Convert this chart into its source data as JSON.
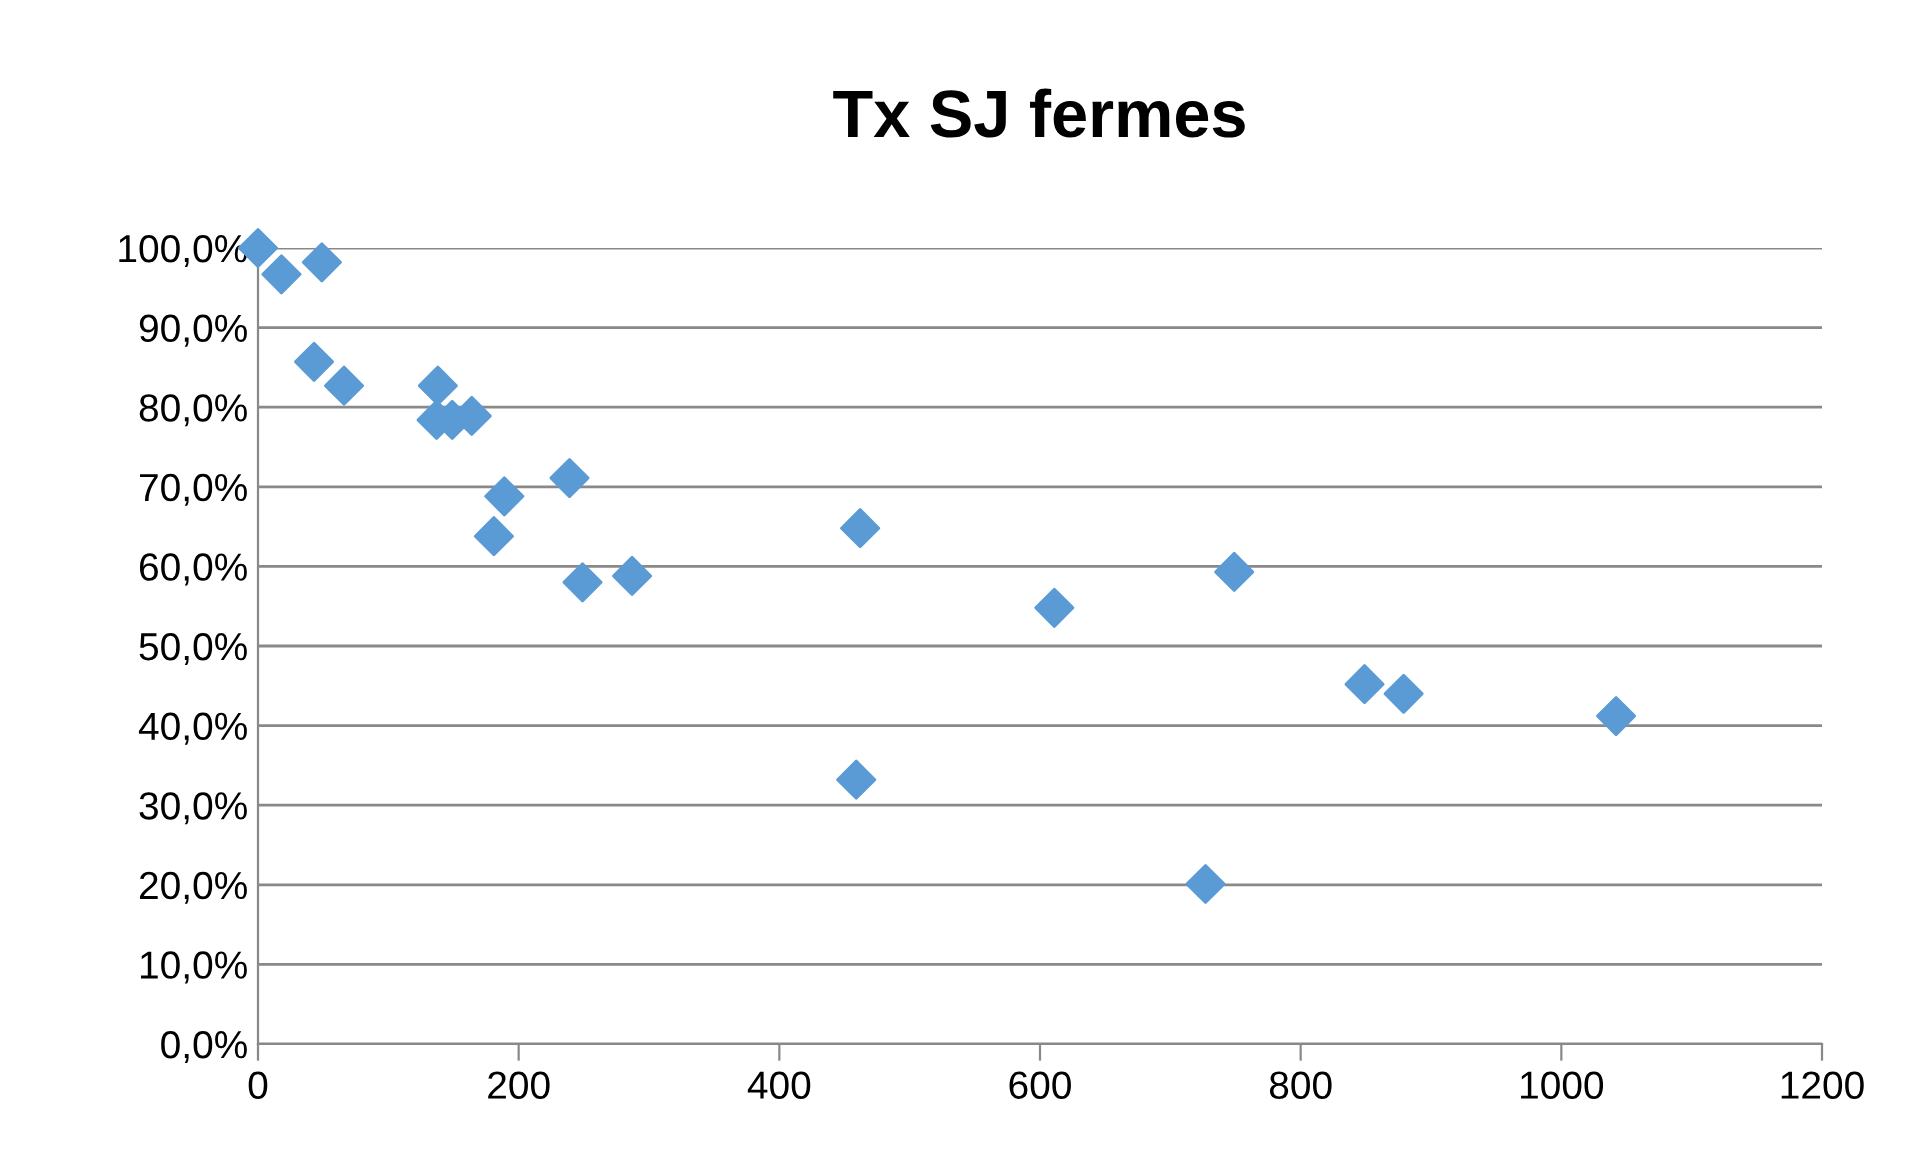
{
  "chart_data": {
    "type": "scatter",
    "title": "Tx SJ fermes",
    "series": [
      {
        "color": "#5b9bd5",
        "x": [
          0,
          18,
          49,
          43,
          66,
          138,
          137,
          149,
          164,
          181,
          189,
          239,
          249,
          287,
          462,
          459,
          611,
          749,
          727,
          849,
          879,
          1042
        ],
        "values": [
          1.0,
          0.967,
          0.982,
          0.857,
          0.827,
          0.827,
          0.784,
          0.784,
          0.789,
          0.638,
          0.688,
          0.711,
          0.58,
          0.588,
          0.648,
          0.332,
          0.548,
          0.593,
          0.201,
          0.452,
          0.44,
          0.412
        ]
      }
    ],
    "marker": "diamond",
    "grid": "y",
    "legend": false,
    "xlim": [
      0,
      1200
    ],
    "xticks": [
      0,
      200,
      400,
      600,
      800,
      1000,
      1200
    ],
    "ylim": [
      0,
      1
    ],
    "yticks": [
      {
        "value": 0,
        "label": "0,0%"
      },
      {
        "value": 0.1,
        "label": "10,0%"
      },
      {
        "value": 0.2,
        "label": "20,0%"
      },
      {
        "value": 0.3,
        "label": "30,0%"
      },
      {
        "value": 0.4,
        "label": "40,0%"
      },
      {
        "value": 0.5,
        "label": "50,0%"
      },
      {
        "value": 0.6,
        "label": "60,0%"
      },
      {
        "value": 0.7,
        "label": "70,0%"
      },
      {
        "value": 0.8,
        "label": "80,0%"
      },
      {
        "value": 0.9,
        "label": "90,0%"
      },
      {
        "value": 1.0,
        "label": "100,0%"
      }
    ]
  }
}
